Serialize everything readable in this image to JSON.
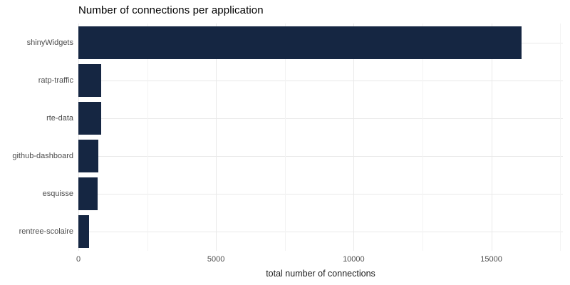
{
  "chart_data": {
    "type": "bar",
    "orientation": "horizontal",
    "title": "Number of connections per application",
    "xlabel": "total number of connections",
    "ylabel": "",
    "categories": [
      "shinyWidgets",
      "ratp-traffic",
      "rte-data",
      "github-dashboard",
      "esquisse",
      "rentree-scolaire"
    ],
    "values": [
      16100,
      830,
      820,
      730,
      700,
      380
    ],
    "xlim": [
      0,
      17600
    ],
    "x_major_ticks": [
      0,
      5000,
      10000,
      15000
    ],
    "x_minor_ticks": [
      2500,
      7500,
      12500,
      17500
    ],
    "legend_position": "none",
    "grid": "vertical major+minor, horizontal major at category centers"
  },
  "colors": {
    "bar": "#152642",
    "background": "#ffffff",
    "grid_major": "#e9e9e9",
    "grid_minor": "#f3f3f3",
    "tick_label": "#4d4d4d",
    "title_text": "#000000",
    "axis_title_text": "#1a1a1a"
  }
}
